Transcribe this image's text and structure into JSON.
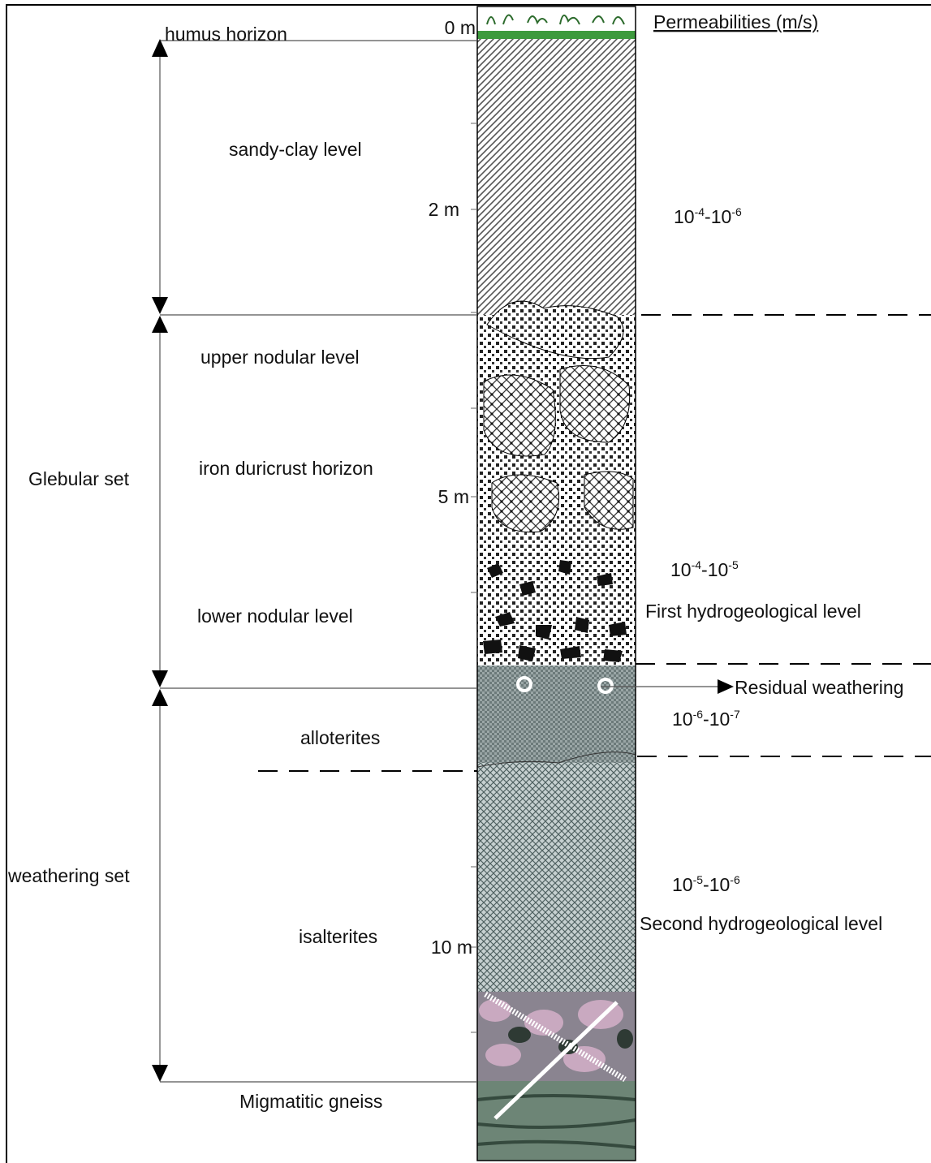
{
  "depth_labels": [
    "0 m",
    "2 m",
    "5 m",
    "10 m"
  ],
  "permeability_title": "Permeabilities (m/s)",
  "horizons": [
    "humus horizon",
    "sandy-clay level",
    "upper nodular level",
    "iron duricrust horizon",
    "lower nodular level",
    "alloterites",
    "isalterites",
    "Migmatitic gneiss"
  ],
  "sets": [
    "Glebular set",
    "weathering set"
  ],
  "permeabilities": [
    [
      "10",
      "-4",
      "-10",
      "-6"
    ],
    [
      "10",
      "-4",
      "-10",
      "-5"
    ],
    [
      "10",
      "-6",
      "-10",
      "-7"
    ],
    [
      "10",
      "-5",
      "-10",
      "-6"
    ]
  ],
  "hydro_levels": [
    "First hydrogeological level",
    "Second hydrogeological level"
  ],
  "residual": "Residual weathering"
}
